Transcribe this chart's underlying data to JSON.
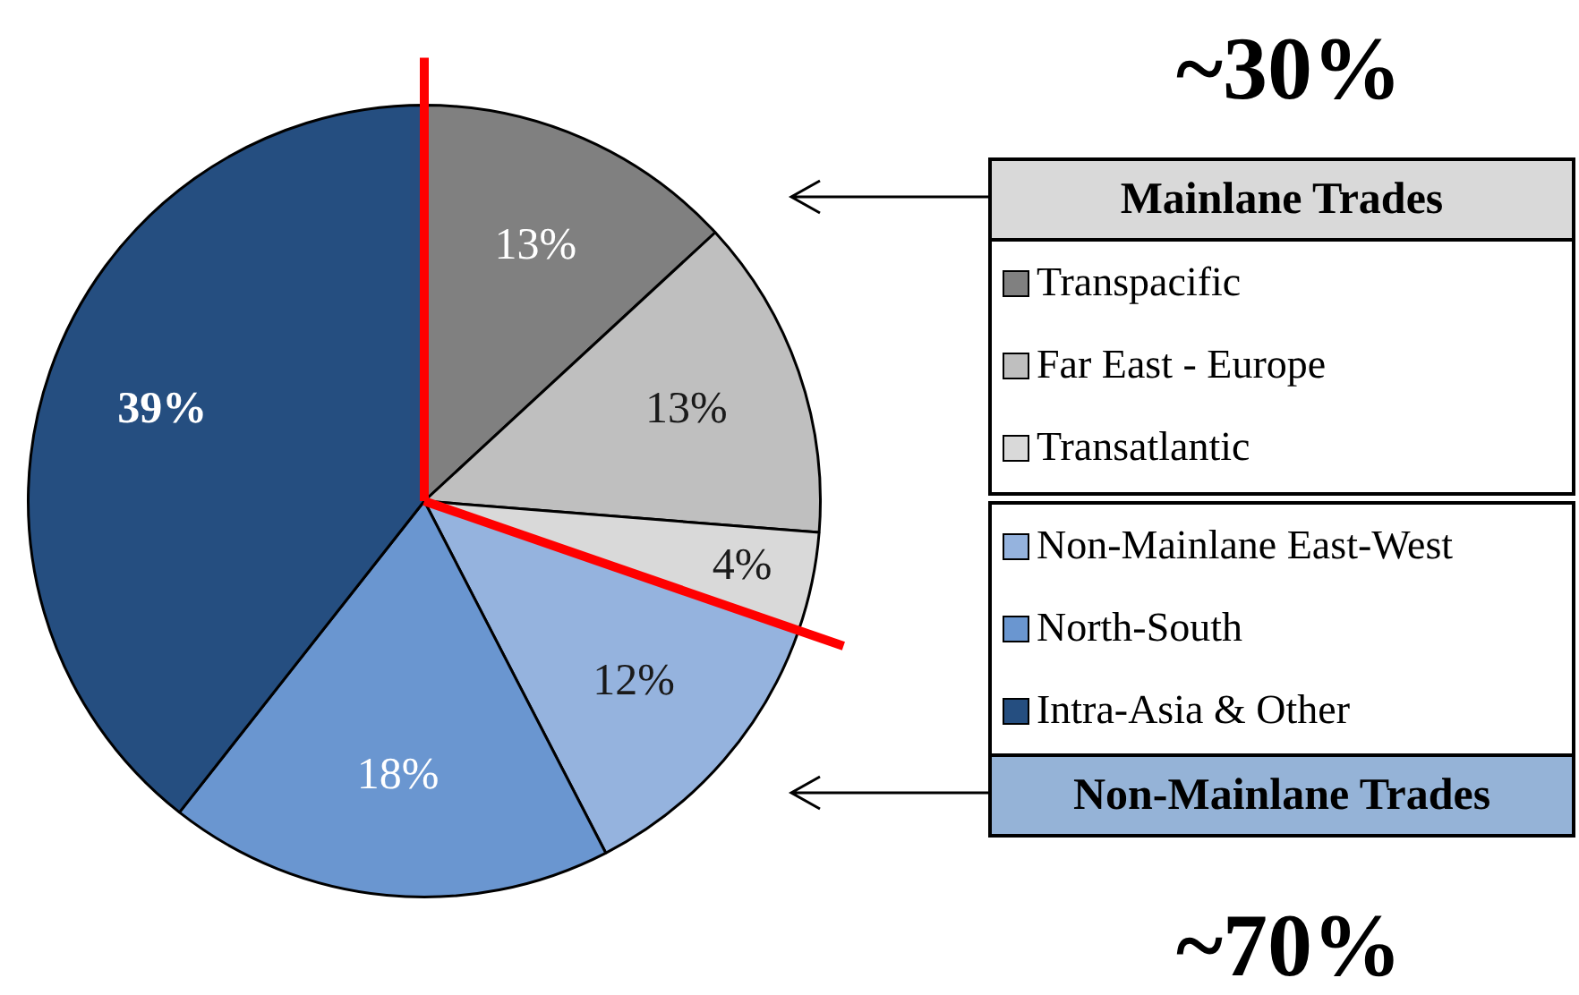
{
  "chart_data": {
    "type": "pie",
    "categories": [
      "Transpacific",
      "Far East - Europe",
      "Transatlantic",
      "Non-Mainlane East-West",
      "North-South",
      "Intra-Asia & Other"
    ],
    "values": [
      13,
      13,
      4,
      12,
      18,
      39
    ],
    "colors": [
      "#808080",
      "#bfbfbf",
      "#d9d9d9",
      "#95b3de",
      "#6a96d0",
      "#254e80"
    ],
    "value_labels": [
      "13%",
      "13%",
      "4%",
      "12%",
      "18%",
      "39%"
    ],
    "legend": "right",
    "annotations": [
      "~30%",
      "Mainlane Trades",
      "Non-Mainlane Trades",
      "~70%"
    ]
  }
}
